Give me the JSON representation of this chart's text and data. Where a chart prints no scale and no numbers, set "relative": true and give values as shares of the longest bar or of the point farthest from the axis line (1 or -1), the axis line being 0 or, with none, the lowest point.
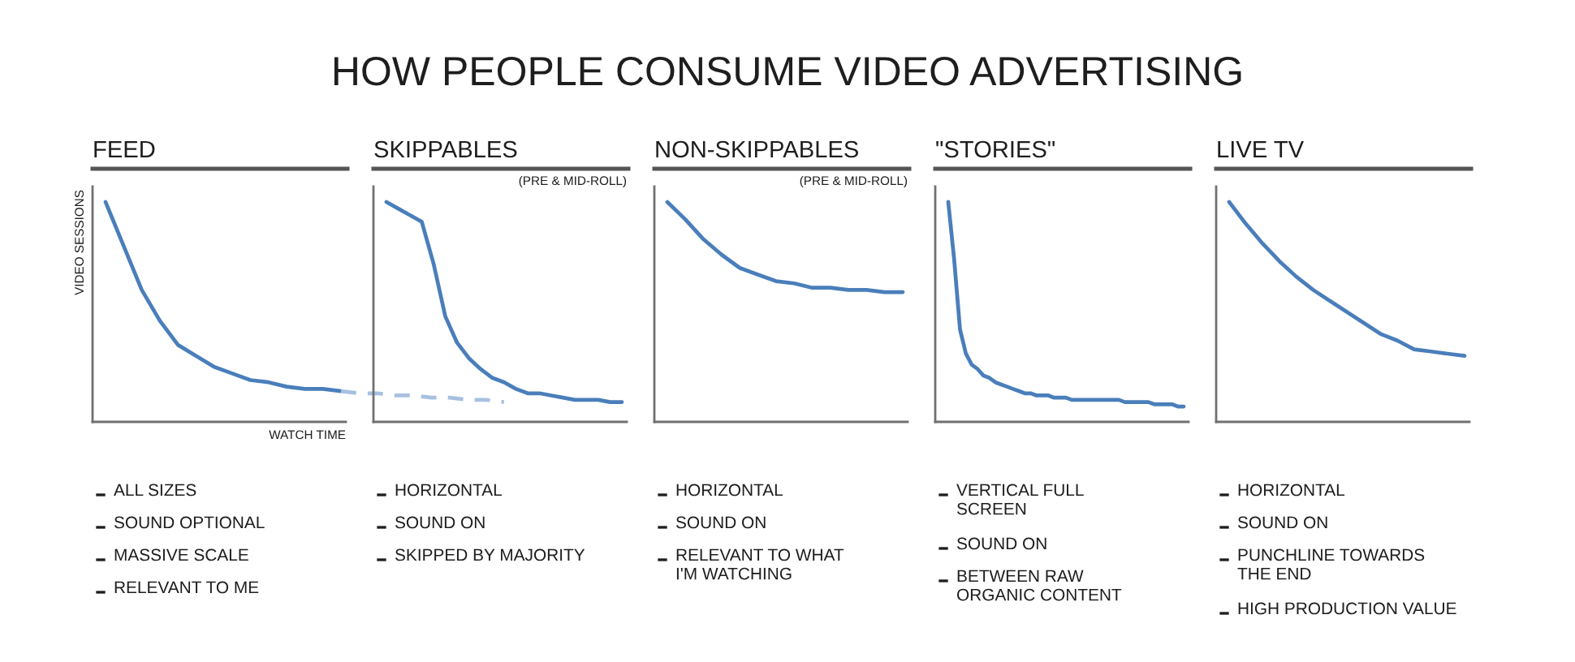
{
  "chart_data": [
    {
      "type": "other",
      "title": "HOW PEOPLE CONSUME VIDEO ADVERTISING"
    },
    {
      "type": "line",
      "title": "FEED",
      "xlabel": "WATCH TIME",
      "ylabel": "VIDEO SESSIONS",
      "relative": true,
      "categories": [
        null,
        null,
        null,
        null,
        null,
        null,
        null,
        null,
        null,
        null,
        null,
        null,
        null,
        null,
        null,
        null,
        null,
        null,
        null,
        null,
        null,
        null,
        null
      ],
      "series": [
        {
          "color": "#4a7ebb",
          "values": [
            1.0,
            0.8,
            0.6,
            0.46,
            0.35,
            0.3,
            0.25,
            0.22,
            0.19,
            0.18,
            0.16,
            0.15,
            0.15,
            0.14,
            null,
            null,
            null,
            null,
            null,
            null,
            null,
            null,
            null
          ]
        },
        {
          "color": "#a8c0e0",
          "line_style": "dashed",
          "values": [
            null,
            null,
            null,
            null,
            null,
            null,
            null,
            null,
            null,
            null,
            null,
            null,
            null,
            0.14,
            0.13,
            0.13,
            0.12,
            0.12,
            0.11,
            0.11,
            0.1,
            0.1,
            0.09
          ]
        }
      ],
      "annotations": [
        "ALL SIZES",
        "SOUND OPTIONAL",
        "MASSIVE SCALE",
        "RELEVANT TO ME"
      ]
    },
    {
      "type": "line",
      "title": "SKIPPABLES",
      "subtitle": "(PRE & MID-ROLL)",
      "relative": true,
      "categories": [
        null,
        null,
        null,
        null,
        null,
        null,
        null,
        null,
        null,
        null,
        null,
        null,
        null,
        null,
        null,
        null,
        null,
        null,
        null,
        null,
        null
      ],
      "series": [
        {
          "color": "#4a7ebb",
          "values": [
            1.0,
            0.97,
            0.94,
            0.91,
            0.72,
            0.48,
            0.36,
            0.29,
            0.24,
            0.2,
            0.18,
            0.15,
            0.13,
            0.13,
            0.12,
            0.11,
            0.1,
            0.1,
            0.1,
            0.09,
            0.09
          ]
        }
      ],
      "annotations": [
        "HORIZONTAL",
        "SOUND ON",
        "SKIPPED BY MAJORITY"
      ]
    },
    {
      "type": "line",
      "title": "NON-SKIPPABLES",
      "subtitle": "(PRE & MID-ROLL)",
      "relative": true,
      "categories": [
        null,
        null,
        null,
        null,
        null,
        null,
        null,
        null,
        null,
        null,
        null,
        null,
        null,
        null
      ],
      "series": [
        {
          "color": "#4a7ebb",
          "values": [
            1.0,
            0.92,
            0.83,
            0.76,
            0.7,
            0.67,
            0.64,
            0.63,
            0.61,
            0.61,
            0.6,
            0.6,
            0.59,
            0.59
          ]
        }
      ],
      "annotations": [
        "HORIZONTAL",
        "SOUND ON",
        "RELEVANT TO WHAT\nI'M WATCHING"
      ]
    },
    {
      "type": "line",
      "title": "\"STORIES\"",
      "relative": true,
      "categories": [
        null,
        null,
        null,
        null,
        null,
        null,
        null,
        null,
        null,
        null,
        null,
        null,
        null,
        null,
        null,
        null,
        null,
        null,
        null,
        null,
        null,
        null,
        null,
        null,
        null,
        null,
        null,
        null,
        null,
        null,
        null,
        null,
        null,
        null,
        null,
        null,
        null,
        null,
        null,
        null,
        null
      ],
      "series": [
        {
          "color": "#4a7ebb",
          "values": [
            1.0,
            0.74,
            0.42,
            0.31,
            0.26,
            0.24,
            0.21,
            0.2,
            0.18,
            0.17,
            0.16,
            0.15,
            0.14,
            0.13,
            0.13,
            0.12,
            0.12,
            0.12,
            0.11,
            0.11,
            0.11,
            0.1,
            0.1,
            0.1,
            0.1,
            0.1,
            0.1,
            0.1,
            0.1,
            0.1,
            0.09,
            0.09,
            0.09,
            0.09,
            0.09,
            0.08,
            0.08,
            0.08,
            0.08,
            0.07,
            0.07
          ]
        }
      ],
      "annotations": [
        "VERTICAL FULL\nSCREEN",
        "SOUND ON",
        "BETWEEN RAW\nORGANIC CONTENT"
      ]
    },
    {
      "type": "line",
      "title": "LIVE TV",
      "relative": true,
      "categories": [
        null,
        null,
        null,
        null,
        null,
        null,
        null,
        null,
        null,
        null,
        null,
        null,
        null,
        null,
        null
      ],
      "series": [
        {
          "color": "#4a7ebb",
          "values": [
            1.0,
            0.9,
            0.81,
            0.73,
            0.66,
            0.6,
            0.55,
            0.5,
            0.45,
            0.4,
            0.37,
            0.33,
            0.32,
            0.31,
            0.3
          ]
        }
      ],
      "annotations": [
        "HORIZONTAL",
        "SOUND ON",
        "PUNCHLINE TOWARDS\nTHE END",
        "HIGH PRODUCTION VALUE"
      ]
    }
  ]
}
